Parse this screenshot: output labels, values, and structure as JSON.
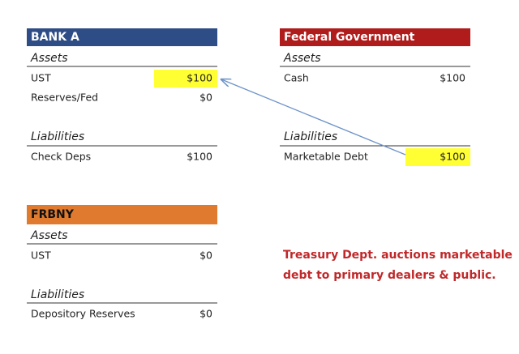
{
  "accounts": [
    {
      "title": "BANK A",
      "assets_label": "Assets",
      "assets": [
        {
          "label": "UST",
          "value": "$100"
        },
        {
          "label": "Reserves/Fed",
          "value": "$0"
        }
      ],
      "liabilities_label": "Liabilities",
      "liabilities": [
        {
          "label": "Check Deps",
          "value": "$100"
        }
      ]
    },
    {
      "title": "Federal Government",
      "assets_label": "Assets",
      "assets": [
        {
          "label": "Cash",
          "value": "$100"
        }
      ],
      "liabilities_label": "Liabilities",
      "liabilities": [
        {
          "label": "Marketable Debt",
          "value": "$100"
        }
      ]
    },
    {
      "title": "FRBNY",
      "assets_label": "Assets",
      "assets": [
        {
          "label": "UST",
          "value": "$0"
        }
      ],
      "liabilities_label": "Liabilities",
      "liabilities": [
        {
          "label": "Depository Reserves",
          "value": "$0"
        }
      ]
    }
  ],
  "note": [
    "Treasury Dept. auctions marketable",
    "debt to primary dealers & public."
  ]
}
